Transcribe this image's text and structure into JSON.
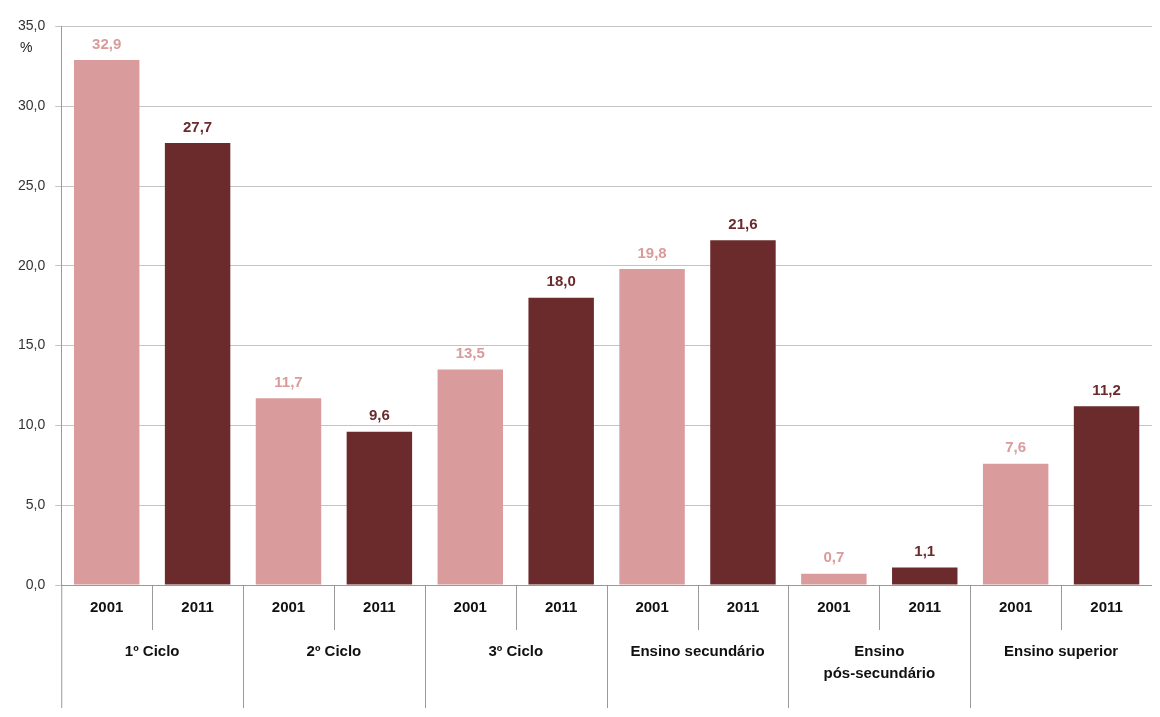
{
  "chart_data": {
    "type": "bar",
    "ylabel": "%",
    "categories": [
      "1º Ciclo",
      "2º Ciclo",
      "3º Ciclo",
      "Ensino secundário",
      "Ensino pós-secundário",
      "Ensino superior"
    ],
    "series": [
      {
        "name": "2001",
        "color": "#d99b9b",
        "values": [
          32.9,
          11.7,
          13.5,
          19.8,
          0.7,
          7.6
        ],
        "value_labels": [
          "32,9",
          "11,7",
          "13,5",
          "19,8",
          "0,7",
          "7,6"
        ]
      },
      {
        "name": "2011",
        "color": "#6b2a2c",
        "values": [
          27.7,
          9.6,
          18.0,
          21.6,
          1.1,
          11.2
        ],
        "value_labels": [
          "27,7",
          "9,6",
          "18,0",
          "21,6",
          "1,1",
          "11,2"
        ]
      }
    ],
    "ylim": [
      0,
      35
    ],
    "yticks": [
      {
        "value": 0,
        "label": "0,0"
      },
      {
        "value": 5,
        "label": "5,0"
      },
      {
        "value": 10,
        "label": "10,0"
      },
      {
        "value": 15,
        "label": "15,0"
      },
      {
        "value": 20,
        "label": "20,0"
      },
      {
        "value": 25,
        "label": "25,0"
      },
      {
        "value": 30,
        "label": "30,0"
      },
      {
        "value": 35,
        "label": "35,0"
      }
    ],
    "grid": "y",
    "legend": false
  }
}
